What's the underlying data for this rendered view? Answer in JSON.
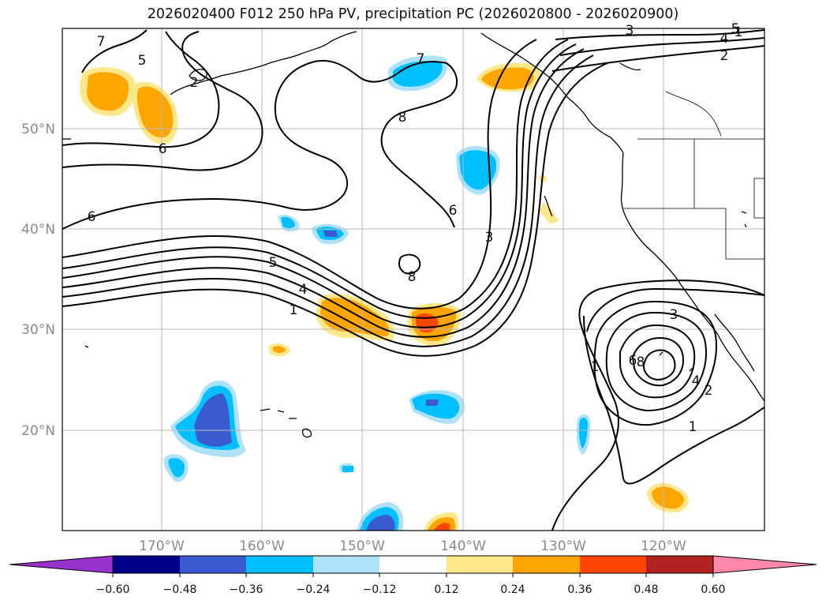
{
  "chart_data": {
    "type": "contour-map",
    "title": "2026020400 F012 250 hPa PV, precipitation PC (2026020800 - 2026020900)",
    "x_ticks": [
      "170°W",
      "160°W",
      "150°W",
      "140°W",
      "130°W",
      "120°W"
    ],
    "y_ticks": [
      "50°N",
      "40°N",
      "30°N",
      "20°N"
    ],
    "lon_range": [
      -180,
      -110
    ],
    "lat_range": [
      10,
      60
    ],
    "colorbar": {
      "ticks": [
        "−0.60",
        "−0.48",
        "−0.36",
        "−0.24",
        "−0.12",
        "0.12",
        "0.24",
        "0.36",
        "0.48",
        "0.60"
      ],
      "colors": [
        "#9932cc",
        "#00008b",
        "#3a5bcf",
        "#00bfff",
        "#aee2fa",
        "#ffffff",
        "#ffe88a",
        "#ffa500",
        "#ff4500",
        "#b22222",
        "#ff88aa"
      ]
    },
    "contour_labels": [
      "7",
      "5",
      "6",
      "2",
      "6",
      "1",
      "8",
      "8",
      "7",
      "6",
      "3",
      "5",
      "4",
      "1",
      "3",
      "4",
      "2",
      "8",
      "6",
      "3",
      "1",
      "4",
      "2",
      "1",
      "5"
    ]
  },
  "colors": {
    "axis": "#000000",
    "grid": "#b8b8b8",
    "ticklabel": "#8a8a8a"
  }
}
